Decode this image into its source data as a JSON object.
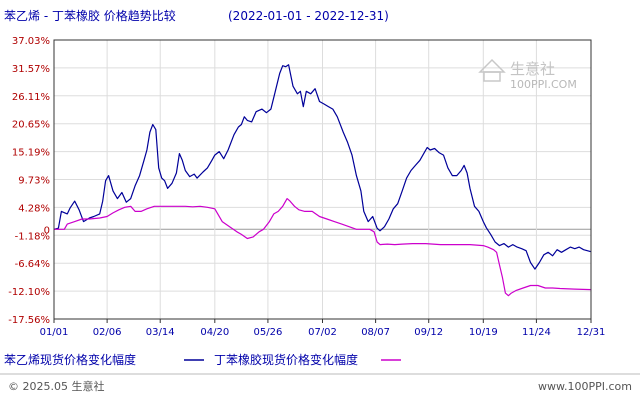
{
  "header": {
    "title": "苯乙烯 - 丁苯橡胶 价格趋势比较",
    "date_range": "(2022-01-01 - 2022-12-31)"
  },
  "watermark": {
    "brand": "生意社",
    "url": "100PPI.COM"
  },
  "footer": {
    "left": "© 2025.05 生意社",
    "right": "www.100PPI.com"
  },
  "colors": {
    "styrene": "#000099",
    "sbr": "#cc00cc",
    "grid": "#dddddd",
    "zero_line": "#999999",
    "axis": "#333333",
    "tick_label": "#b00000",
    "text": "#0000aa"
  },
  "chart_data": {
    "type": "line",
    "x_start": "2022-01-01",
    "x_end": "2022-12-31",
    "x_tick_labels": [
      "01/01",
      "02/06",
      "03/14",
      "04/20",
      "05/26",
      "07/02",
      "08/07",
      "09/12",
      "10/19",
      "11/24",
      "12/31"
    ],
    "y_tick_labels": [
      "37.03%",
      "31.57%",
      "26.11%",
      "20.65%",
      "15.19%",
      "9.73%",
      "4.28%",
      "-1.18%",
      "-6.64%",
      "-12.10%",
      "-17.56%"
    ],
    "y_ticks": [
      37.03,
      31.57,
      26.11,
      20.65,
      15.19,
      9.73,
      4.28,
      -1.18,
      -6.64,
      -12.1,
      -17.56
    ],
    "ylim": [
      -17.56,
      37.03
    ],
    "zero_label": "0",
    "grid": true,
    "legend_position": "bottom",
    "series": [
      {
        "name": "苯乙烯现货价格变化幅度",
        "points": [
          [
            "01/01",
            0.0
          ],
          [
            "01/04",
            0.2
          ],
          [
            "01/06",
            3.5
          ],
          [
            "01/10",
            3.0
          ],
          [
            "01/12",
            4.2
          ],
          [
            "01/15",
            5.5
          ],
          [
            "01/18",
            3.8
          ],
          [
            "01/21",
            1.5
          ],
          [
            "01/25",
            2.2
          ],
          [
            "01/28",
            2.5
          ],
          [
            "02/01",
            3.0
          ],
          [
            "02/03",
            5.5
          ],
          [
            "02/05",
            9.5
          ],
          [
            "02/07",
            10.5
          ],
          [
            "02/10",
            7.5
          ],
          [
            "02/13",
            6.0
          ],
          [
            "02/16",
            7.2
          ],
          [
            "02/19",
            5.3
          ],
          [
            "02/22",
            6.0
          ],
          [
            "02/25",
            8.5
          ],
          [
            "02/28",
            10.5
          ],
          [
            "03/03",
            13.5
          ],
          [
            "03/05",
            15.5
          ],
          [
            "03/07",
            19.0
          ],
          [
            "03/09",
            20.5
          ],
          [
            "03/11",
            19.5
          ],
          [
            "03/13",
            12.0
          ],
          [
            "03/15",
            10.0
          ],
          [
            "03/17",
            9.5
          ],
          [
            "03/19",
            8.0
          ],
          [
            "03/22",
            9.0
          ],
          [
            "03/25",
            11.0
          ],
          [
            "03/27",
            14.8
          ],
          [
            "03/29",
            13.5
          ],
          [
            "03/31",
            11.5
          ],
          [
            "04/03",
            10.3
          ],
          [
            "04/06",
            10.8
          ],
          [
            "04/08",
            10.0
          ],
          [
            "04/12",
            11.2
          ],
          [
            "04/15",
            12.0
          ],
          [
            "04/18",
            13.5
          ],
          [
            "04/20",
            14.5
          ],
          [
            "04/23",
            15.2
          ],
          [
            "04/26",
            13.8
          ],
          [
            "04/29",
            15.5
          ],
          [
            "05/03",
            18.5
          ],
          [
            "05/06",
            20.0
          ],
          [
            "05/08",
            20.5
          ],
          [
            "05/10",
            22.0
          ],
          [
            "05/12",
            21.3
          ],
          [
            "05/15",
            21.0
          ],
          [
            "05/18",
            23.0
          ],
          [
            "05/22",
            23.5
          ],
          [
            "05/25",
            22.8
          ],
          [
            "05/28",
            23.5
          ],
          [
            "05/31",
            27.0
          ],
          [
            "06/03",
            30.5
          ],
          [
            "06/05",
            32.0
          ],
          [
            "06/07",
            31.8
          ],
          [
            "06/09",
            32.2
          ],
          [
            "06/12",
            28.0
          ],
          [
            "06/15",
            26.5
          ],
          [
            "06/17",
            27.0
          ],
          [
            "06/19",
            24.0
          ],
          [
            "06/21",
            27.0
          ],
          [
            "06/24",
            26.5
          ],
          [
            "06/27",
            27.5
          ],
          [
            "06/30",
            25.0
          ],
          [
            "07/03",
            24.5
          ],
          [
            "07/06",
            24.0
          ],
          [
            "07/09",
            23.5
          ],
          [
            "07/12",
            22.0
          ],
          [
            "07/16",
            19.0
          ],
          [
            "07/19",
            17.0
          ],
          [
            "07/22",
            14.5
          ],
          [
            "07/25",
            10.5
          ],
          [
            "07/28",
            7.5
          ],
          [
            "07/30",
            3.5
          ],
          [
            "08/02",
            1.5
          ],
          [
            "08/05",
            2.5
          ],
          [
            "08/08",
            0.2
          ],
          [
            "08/10",
            -0.3
          ],
          [
            "08/13",
            0.5
          ],
          [
            "08/16",
            2.0
          ],
          [
            "08/19",
            4.0
          ],
          [
            "08/22",
            5.0
          ],
          [
            "08/25",
            7.5
          ],
          [
            "08/28",
            10.0
          ],
          [
            "08/31",
            11.5
          ],
          [
            "09/03",
            12.5
          ],
          [
            "09/06",
            13.5
          ],
          [
            "09/09",
            15.0
          ],
          [
            "09/11",
            16.0
          ],
          [
            "09/13",
            15.5
          ],
          [
            "09/16",
            15.8
          ],
          [
            "09/19",
            15.0
          ],
          [
            "09/22",
            14.5
          ],
          [
            "09/25",
            12.0
          ],
          [
            "09/28",
            10.5
          ],
          [
            "10/01",
            10.5
          ],
          [
            "10/04",
            11.5
          ],
          [
            "10/06",
            12.5
          ],
          [
            "10/08",
            11.0
          ],
          [
            "10/10",
            8.0
          ],
          [
            "10/13",
            4.5
          ],
          [
            "10/16",
            3.5
          ],
          [
            "10/19",
            1.5
          ],
          [
            "10/21",
            0.3
          ],
          [
            "10/24",
            -1.0
          ],
          [
            "10/27",
            -2.5
          ],
          [
            "10/30",
            -3.2
          ],
          [
            "11/02",
            -2.8
          ],
          [
            "11/05",
            -3.5
          ],
          [
            "11/08",
            -3.0
          ],
          [
            "11/11",
            -3.5
          ],
          [
            "11/14",
            -3.8
          ],
          [
            "11/17",
            -4.2
          ],
          [
            "11/20",
            -6.5
          ],
          [
            "11/23",
            -7.8
          ],
          [
            "11/26",
            -6.5
          ],
          [
            "11/29",
            -5.0
          ],
          [
            "12/02",
            -4.5
          ],
          [
            "12/05",
            -5.2
          ],
          [
            "12/08",
            -4.0
          ],
          [
            "12/11",
            -4.5
          ],
          [
            "12/14",
            -4.0
          ],
          [
            "12/17",
            -3.5
          ],
          [
            "12/20",
            -3.8
          ],
          [
            "12/23",
            -3.5
          ],
          [
            "12/26",
            -4.0
          ],
          [
            "12/31",
            -4.4
          ]
        ]
      },
      {
        "name": "丁苯橡胶现货价格变化幅度",
        "points": [
          [
            "01/01",
            0.0
          ],
          [
            "01/08",
            0.0
          ],
          [
            "01/10",
            1.0
          ],
          [
            "01/15",
            1.5
          ],
          [
            "01/20",
            2.0
          ],
          [
            "01/25",
            2.0
          ],
          [
            "02/01",
            2.2
          ],
          [
            "02/06",
            2.5
          ],
          [
            "02/10",
            3.2
          ],
          [
            "02/14",
            3.8
          ],
          [
            "02/18",
            4.3
          ],
          [
            "02/22",
            4.5
          ],
          [
            "02/25",
            3.5
          ],
          [
            "03/01",
            3.5
          ],
          [
            "03/05",
            4.0
          ],
          [
            "03/10",
            4.5
          ],
          [
            "03/20",
            4.5
          ],
          [
            "03/31",
            4.5
          ],
          [
            "04/05",
            4.4
          ],
          [
            "04/10",
            4.5
          ],
          [
            "04/15",
            4.3
          ],
          [
            "04/20",
            4.0
          ],
          [
            "04/25",
            1.5
          ],
          [
            "04/30",
            0.5
          ],
          [
            "05/05",
            -0.5
          ],
          [
            "05/08",
            -1.0
          ],
          [
            "05/12",
            -1.8
          ],
          [
            "05/16",
            -1.5
          ],
          [
            "05/20",
            -0.5
          ],
          [
            "05/23",
            0.0
          ],
          [
            "05/27",
            1.5
          ],
          [
            "05/30",
            3.0
          ],
          [
            "06/02",
            3.5
          ],
          [
            "06/05",
            4.5
          ],
          [
            "06/08",
            6.0
          ],
          [
            "06/10",
            5.5
          ],
          [
            "06/13",
            4.5
          ],
          [
            "06/16",
            3.8
          ],
          [
            "06/20",
            3.5
          ],
          [
            "06/25",
            3.5
          ],
          [
            "06/30",
            2.5
          ],
          [
            "07/05",
            2.0
          ],
          [
            "07/10",
            1.5
          ],
          [
            "07/15",
            1.0
          ],
          [
            "07/20",
            0.5
          ],
          [
            "07/25",
            0.0
          ],
          [
            "07/30",
            0.0
          ],
          [
            "08/03",
            0.0
          ],
          [
            "08/06",
            -0.5
          ],
          [
            "08/08",
            -2.5
          ],
          [
            "08/10",
            -3.0
          ],
          [
            "08/15",
            -2.9
          ],
          [
            "08/20",
            -3.0
          ],
          [
            "08/25",
            -2.9
          ],
          [
            "09/01",
            -2.8
          ],
          [
            "09/10",
            -2.8
          ],
          [
            "09/20",
            -3.0
          ],
          [
            "09/30",
            -3.0
          ],
          [
            "10/10",
            -3.0
          ],
          [
            "10/19",
            -3.2
          ],
          [
            "10/22",
            -3.5
          ],
          [
            "10/26",
            -4.0
          ],
          [
            "10/28",
            -4.5
          ],
          [
            "10/30",
            -7.0
          ],
          [
            "11/01",
            -9.5
          ],
          [
            "11/03",
            -12.5
          ],
          [
            "11/05",
            -13.0
          ],
          [
            "11/07",
            -12.5
          ],
          [
            "11/10",
            -12.0
          ],
          [
            "11/15",
            -11.5
          ],
          [
            "11/20",
            -11.0
          ],
          [
            "11/25",
            -11.0
          ],
          [
            "11/30",
            -11.5
          ],
          [
            "12/05",
            -11.5
          ],
          [
            "12/10",
            -11.6
          ],
          [
            "12/20",
            -11.7
          ],
          [
            "12/31",
            -11.8
          ]
        ]
      }
    ]
  }
}
